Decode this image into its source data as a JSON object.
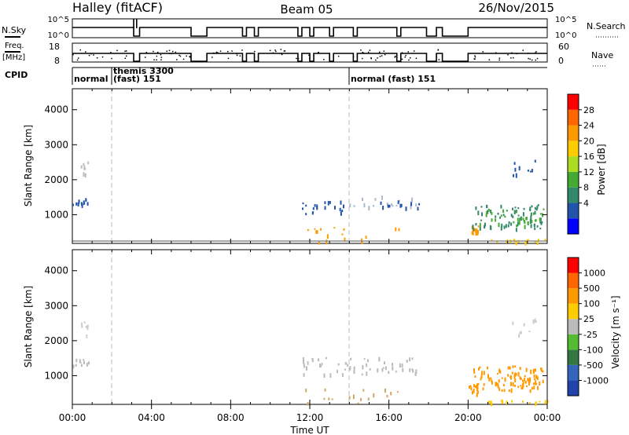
{
  "header": {
    "station": "Halley (fitACF)",
    "beam": "Beam 05",
    "date": "26/Nov/2015"
  },
  "panels": {
    "nsky_label": "N.Sky",
    "nsky_ticks": [
      "10^5",
      "10^0"
    ],
    "nsearch_label": "N.Search",
    "nsearch_ticks": [
      "10^5",
      "10^0"
    ],
    "freq_label_1": "Freq.",
    "freq_label_2": "[MHz]",
    "freq_ticks": [
      "18",
      "8"
    ],
    "nave_label": "Nave",
    "nave_ticks": [
      "60",
      "0"
    ],
    "cpid_label": "CPID",
    "cpid_segments": [
      {
        "start_hour": 0.0,
        "text1": "normal",
        "text2": ""
      },
      {
        "start_hour": 2.0,
        "text1": "themis 3300",
        "text2": "(fast) 151"
      },
      {
        "start_hour": 14.0,
        "text1": "normal (fast) 151",
        "text2": ""
      }
    ]
  },
  "colorbars": {
    "power": {
      "label": "Power [dB]",
      "ticks": [
        "28",
        "24",
        "20",
        "16",
        "12",
        "8",
        "4"
      ],
      "colors": [
        "#0000ff",
        "#2255aa",
        "#33886a",
        "#44aa33",
        "#aadd22",
        "#ffcc00",
        "#ff9900",
        "#ff6600",
        "#ff0000"
      ]
    },
    "velocity": {
      "label": "Velocity [m s⁻¹]",
      "ticks": [
        "1000",
        "500",
        "100",
        "25",
        "-25",
        "-100",
        "-500",
        "-1000"
      ],
      "colors": [
        "#2244aa",
        "#3366bb",
        "#337744",
        "#55bb33",
        "#bbbbbb",
        "#ffcc00",
        "#ff9900",
        "#ff6600",
        "#ff0000"
      ]
    }
  },
  "chart_data": {
    "type": "heatmap",
    "title": "Halley (fitACF)  Beam 05  26/Nov/2015",
    "xlabel": "Time UT",
    "ylabel": "Slant Range [km]",
    "x_ticks": [
      "00:00",
      "04:00",
      "08:00",
      "12:00",
      "16:00",
      "20:00",
      "00:00"
    ],
    "y_ticks": [
      "1000",
      "2000",
      "3000",
      "4000"
    ],
    "xlim_hours": [
      0,
      24
    ],
    "ylim_km": [
      180,
      4600
    ],
    "mode_change_hours": [
      2.0,
      14.0
    ],
    "power_patches": [
      {
        "t0": 0.0,
        "t1": 0.8,
        "r0": 1300,
        "r1": 1500,
        "color": "#2255aa",
        "density": 0.9
      },
      {
        "t0": 0.4,
        "t1": 0.8,
        "r0": 2050,
        "r1": 2550,
        "color": "#bbbbbb",
        "density": 0.3
      },
      {
        "t0": 11.6,
        "t1": 13.8,
        "r0": 1050,
        "r1": 1450,
        "color": "#2255aa",
        "density": 0.35
      },
      {
        "t0": 13.8,
        "t1": 17.5,
        "r0": 1250,
        "r1": 1550,
        "color": "#aabbcc",
        "density": 0.25
      },
      {
        "t0": 15.5,
        "t1": 17.6,
        "r0": 1200,
        "r1": 1450,
        "color": "#2255aa",
        "density": 0.3
      },
      {
        "t0": 11.7,
        "t1": 16.5,
        "r0": 200,
        "r1": 650,
        "color": "#ff9900",
        "density": 0.12
      },
      {
        "t0": 20.0,
        "t1": 20.5,
        "r0": 500,
        "r1": 800,
        "color": "#ff9900",
        "density": 0.9
      },
      {
        "t0": 20.2,
        "t1": 23.8,
        "r0": 600,
        "r1": 1300,
        "color": "#33886a",
        "density": 0.5
      },
      {
        "t0": 20.5,
        "t1": 23.8,
        "r0": 700,
        "r1": 1200,
        "color": "#44aa33",
        "density": 0.35
      },
      {
        "t0": 21.0,
        "t1": 24.0,
        "r0": 240,
        "r1": 320,
        "color": "#ffcc00",
        "density": 1.0
      },
      {
        "t0": 22.2,
        "t1": 23.5,
        "r0": 2150,
        "r1": 2650,
        "color": "#2255aa",
        "density": 0.15
      }
    ],
    "velocity_patches": [
      {
        "t0": 0.0,
        "t1": 0.8,
        "r0": 1300,
        "r1": 1500,
        "color": "#bbbbbb",
        "density": 0.9
      },
      {
        "t0": 0.4,
        "t1": 0.8,
        "r0": 2050,
        "r1": 2550,
        "color": "#cccccc",
        "density": 0.3
      },
      {
        "t0": 11.6,
        "t1": 17.5,
        "r0": 1050,
        "r1": 1550,
        "color": "#bbbbbb",
        "density": 0.35
      },
      {
        "t0": 11.7,
        "t1": 16.5,
        "r0": 200,
        "r1": 650,
        "color": "#ccaa66",
        "density": 0.12
      },
      {
        "t0": 20.0,
        "t1": 20.5,
        "r0": 500,
        "r1": 800,
        "color": "#ff9900",
        "density": 0.95
      },
      {
        "t0": 20.2,
        "t1": 23.8,
        "r0": 600,
        "r1": 1300,
        "color": "#ff9900",
        "density": 0.75
      },
      {
        "t0": 21.0,
        "t1": 24.0,
        "r0": 240,
        "r1": 320,
        "color": "#ffcc00",
        "density": 1.0
      },
      {
        "t0": 22.2,
        "t1": 23.5,
        "r0": 2150,
        "r1": 2650,
        "color": "#cccccc",
        "density": 0.15
      }
    ],
    "nsky_gaps_hours": [
      [
        3.1,
        3.4
      ],
      [
        6.0,
        6.8
      ],
      [
        8.6,
        8.8
      ],
      [
        9.2,
        9.4
      ],
      [
        11.4,
        11.6
      ],
      [
        12.0,
        12.2
      ],
      [
        13.0,
        13.2
      ],
      [
        14.2,
        14.4
      ],
      [
        16.4,
        16.6
      ],
      [
        17.9,
        18.4
      ],
      [
        18.7,
        20.0
      ]
    ]
  }
}
